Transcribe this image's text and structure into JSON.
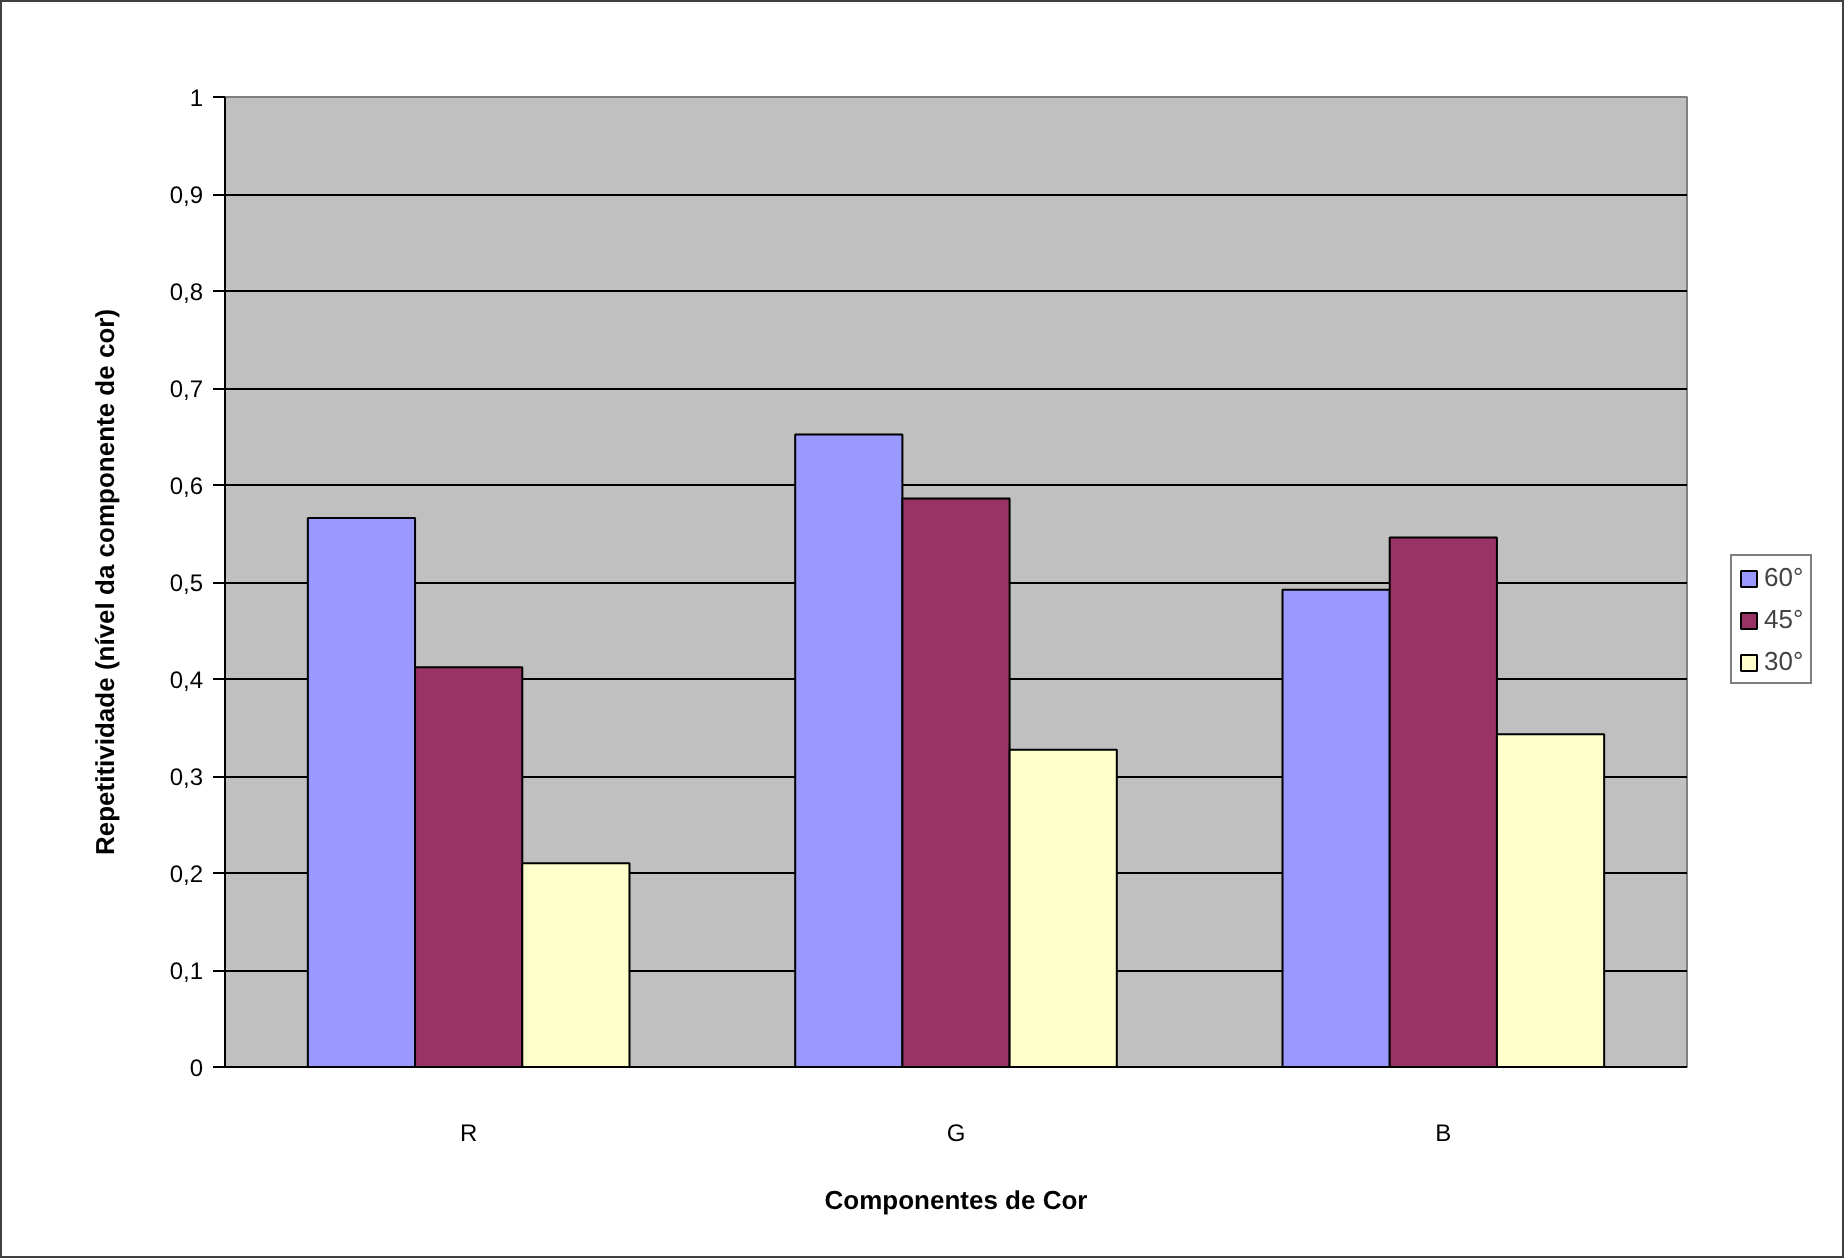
{
  "chart_data": {
    "type": "bar",
    "xlabel": "Componentes de Cor",
    "ylabel": "Repetitividade (nível da componente de cor)",
    "categories": [
      "R",
      "G",
      "B"
    ],
    "series": [
      {
        "name": "60°",
        "color": "#9999ff",
        "values": [
          0.566,
          0.652,
          0.492
        ]
      },
      {
        "name": "45°",
        "color": "#993366",
        "values": [
          0.412,
          0.586,
          0.546
        ]
      },
      {
        "name": "30°",
        "color": "#ffffcc",
        "values": [
          0.21,
          0.327,
          0.343
        ]
      }
    ],
    "ylim": [
      0,
      1
    ],
    "yticks": [
      0,
      {
        "value": 0.1,
        "label": "0,1"
      },
      {
        "value": 0.2,
        "label": "0,2"
      },
      {
        "value": 0.3,
        "label": "0,3"
      },
      {
        "value": 0.4,
        "label": "0,4"
      },
      {
        "value": 0.5,
        "label": "0,5"
      },
      {
        "value": 0.6,
        "label": "0,6"
      },
      {
        "value": 0.7,
        "label": "0,7"
      },
      {
        "value": 0.8,
        "label": "0,8"
      },
      {
        "value": 0.9,
        "label": "0,9"
      },
      1
    ],
    "grid": "y",
    "legend": "right"
  }
}
